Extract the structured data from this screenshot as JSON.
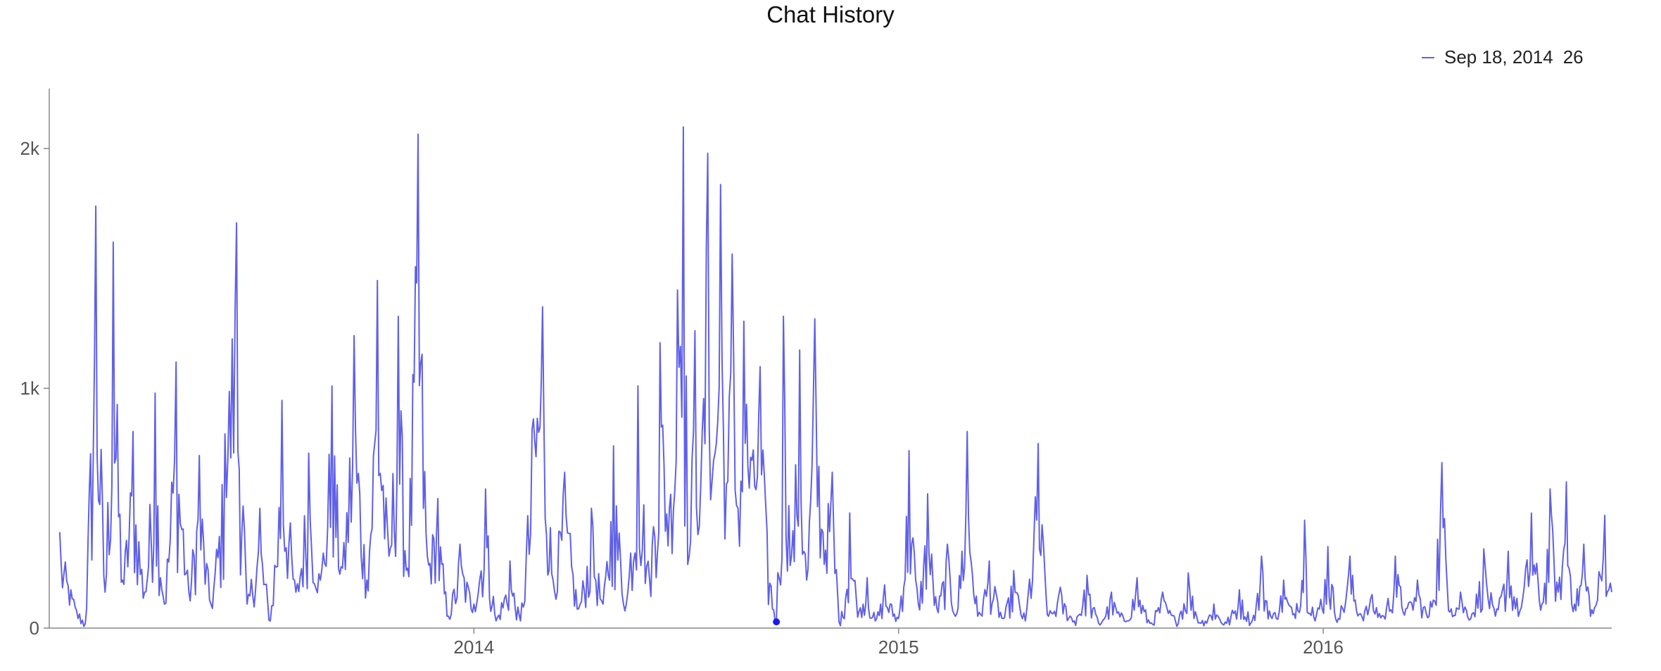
{
  "chart_data": {
    "type": "line",
    "title": "Chat History",
    "xlabel": "",
    "ylabel": "",
    "x_range": [
      "2013-01-01",
      "2016-09-05"
    ],
    "ylim": [
      0,
      2250
    ],
    "y_ticks": [
      {
        "value": 0,
        "label": "0"
      },
      {
        "value": 1000,
        "label": "1k"
      },
      {
        "value": 2000,
        "label": "2k"
      }
    ],
    "x_ticks": [
      {
        "date": "2014-01-01",
        "label": "2014"
      },
      {
        "date": "2015-01-01",
        "label": "2015"
      },
      {
        "date": "2016-01-01",
        "label": "2016"
      }
    ],
    "grid": false,
    "legend": {
      "placement": "top-right",
      "date_label": "Sep 18, 2014",
      "value_label": "26"
    },
    "highlight": {
      "date": "2014-09-18",
      "value": 26
    },
    "series": [
      {
        "color": "#6060e8",
        "points": [
          [
            "2013-01-10",
            400
          ],
          [
            "2013-01-22",
            120
          ],
          [
            "2013-02-01",
            20
          ],
          [
            "2013-02-10",
            1760
          ],
          [
            "2013-02-18",
            150
          ],
          [
            "2013-02-25",
            1610
          ],
          [
            "2013-03-05",
            200
          ],
          [
            "2013-03-14",
            820
          ],
          [
            "2013-03-24",
            150
          ],
          [
            "2013-04-02",
            980
          ],
          [
            "2013-04-10",
            100
          ],
          [
            "2013-04-20",
            1110
          ],
          [
            "2013-05-01",
            150
          ],
          [
            "2013-05-10",
            720
          ],
          [
            "2013-05-20",
            100
          ],
          [
            "2013-06-01",
            810
          ],
          [
            "2013-06-11",
            1690
          ],
          [
            "2013-06-20",
            100
          ],
          [
            "2013-07-01",
            500
          ],
          [
            "2013-07-10",
            30
          ],
          [
            "2013-07-20",
            950
          ],
          [
            "2013-08-01",
            150
          ],
          [
            "2013-08-12",
            730
          ],
          [
            "2013-08-22",
            200
          ],
          [
            "2013-09-01",
            1010
          ],
          [
            "2013-09-10",
            250
          ],
          [
            "2013-09-20",
            1220
          ],
          [
            "2013-10-01",
            200
          ],
          [
            "2013-10-10",
            1450
          ],
          [
            "2013-10-20",
            300
          ],
          [
            "2013-10-28",
            1300
          ],
          [
            "2013-11-05",
            250
          ],
          [
            "2013-11-14",
            2060
          ],
          [
            "2013-11-22",
            300
          ],
          [
            "2013-12-01",
            540
          ],
          [
            "2013-12-10",
            50
          ],
          [
            "2013-12-20",
            350
          ],
          [
            "2014-01-01",
            100
          ],
          [
            "2014-01-11",
            580
          ],
          [
            "2014-01-20",
            30
          ],
          [
            "2014-02-01",
            280
          ],
          [
            "2014-02-10",
            30
          ],
          [
            "2014-02-20",
            830
          ],
          [
            "2014-03-01",
            1340
          ],
          [
            "2014-03-10",
            200
          ],
          [
            "2014-03-20",
            650
          ],
          [
            "2014-04-01",
            80
          ],
          [
            "2014-04-12",
            500
          ],
          [
            "2014-04-22",
            100
          ],
          [
            "2014-05-01",
            760
          ],
          [
            "2014-05-12",
            100
          ],
          [
            "2014-05-22",
            1010
          ],
          [
            "2014-06-01",
            200
          ],
          [
            "2014-06-10",
            1190
          ],
          [
            "2014-06-18",
            500
          ],
          [
            "2014-06-25",
            1410
          ],
          [
            "2014-06-30",
            2090
          ],
          [
            "2014-07-05",
            300
          ],
          [
            "2014-07-10",
            1240
          ],
          [
            "2014-07-15",
            600
          ],
          [
            "2014-07-21",
            1980
          ],
          [
            "2014-07-26",
            700
          ],
          [
            "2014-08-01",
            1850
          ],
          [
            "2014-08-06",
            600
          ],
          [
            "2014-08-11",
            1560
          ],
          [
            "2014-08-16",
            500
          ],
          [
            "2014-08-21",
            1280
          ],
          [
            "2014-08-28",
            700
          ],
          [
            "2014-09-04",
            1090
          ],
          [
            "2014-09-10",
            400
          ],
          [
            "2014-09-18",
            26
          ],
          [
            "2014-09-24",
            1300
          ],
          [
            "2014-10-01",
            300
          ],
          [
            "2014-10-08",
            1160
          ],
          [
            "2014-10-14",
            200
          ],
          [
            "2014-10-21",
            1290
          ],
          [
            "2014-10-28",
            400
          ],
          [
            "2014-11-05",
            650
          ],
          [
            "2014-11-12",
            10
          ],
          [
            "2014-11-20",
            480
          ],
          [
            "2014-11-28",
            70
          ],
          [
            "2014-12-05",
            210
          ],
          [
            "2014-12-12",
            30
          ],
          [
            "2014-12-20",
            180
          ],
          [
            "2015-01-01",
            40
          ],
          [
            "2015-01-10",
            740
          ],
          [
            "2015-01-18",
            100
          ],
          [
            "2015-01-26",
            560
          ],
          [
            "2015-02-03",
            80
          ],
          [
            "2015-02-12",
            350
          ],
          [
            "2015-02-20",
            60
          ],
          [
            "2015-03-01",
            820
          ],
          [
            "2015-03-10",
            50
          ],
          [
            "2015-03-20",
            280
          ],
          [
            "2015-04-01",
            40
          ],
          [
            "2015-04-10",
            240
          ],
          [
            "2015-04-20",
            30
          ],
          [
            "2015-05-01",
            770
          ],
          [
            "2015-05-10",
            50
          ],
          [
            "2015-05-20",
            170
          ],
          [
            "2015-06-01",
            30
          ],
          [
            "2015-06-12",
            220
          ],
          [
            "2015-06-22",
            20
          ],
          [
            "2015-07-03",
            150
          ],
          [
            "2015-07-14",
            30
          ],
          [
            "2015-07-25",
            210
          ],
          [
            "2015-08-05",
            20
          ],
          [
            "2015-08-16",
            150
          ],
          [
            "2015-08-27",
            30
          ],
          [
            "2015-09-07",
            230
          ],
          [
            "2015-09-18",
            20
          ],
          [
            "2015-09-29",
            100
          ],
          [
            "2015-10-10",
            20
          ],
          [
            "2015-10-21",
            160
          ],
          [
            "2015-11-01",
            30
          ],
          [
            "2015-11-09",
            300
          ],
          [
            "2015-11-18",
            40
          ],
          [
            "2015-11-28",
            200
          ],
          [
            "2015-12-07",
            60
          ],
          [
            "2015-12-16",
            450
          ],
          [
            "2015-12-25",
            30
          ],
          [
            "2016-01-05",
            340
          ],
          [
            "2016-01-14",
            40
          ],
          [
            "2016-01-24",
            300
          ],
          [
            "2016-02-02",
            60
          ],
          [
            "2016-02-12",
            140
          ],
          [
            "2016-02-22",
            50
          ],
          [
            "2016-03-03",
            300
          ],
          [
            "2016-03-12",
            80
          ],
          [
            "2016-03-22",
            200
          ],
          [
            "2016-04-01",
            50
          ],
          [
            "2016-04-12",
            690
          ],
          [
            "2016-04-20",
            80
          ],
          [
            "2016-04-28",
            150
          ],
          [
            "2016-05-08",
            60
          ],
          [
            "2016-05-18",
            330
          ],
          [
            "2016-05-28",
            50
          ],
          [
            "2016-06-08",
            320
          ],
          [
            "2016-06-18",
            70
          ],
          [
            "2016-06-28",
            480
          ],
          [
            "2016-07-07",
            100
          ],
          [
            "2016-07-14",
            580
          ],
          [
            "2016-07-21",
            150
          ],
          [
            "2016-07-28",
            610
          ],
          [
            "2016-08-04",
            100
          ],
          [
            "2016-08-12",
            350
          ],
          [
            "2016-08-20",
            60
          ],
          [
            "2016-08-30",
            470
          ],
          [
            "2016-09-05",
            150
          ]
        ]
      }
    ]
  }
}
